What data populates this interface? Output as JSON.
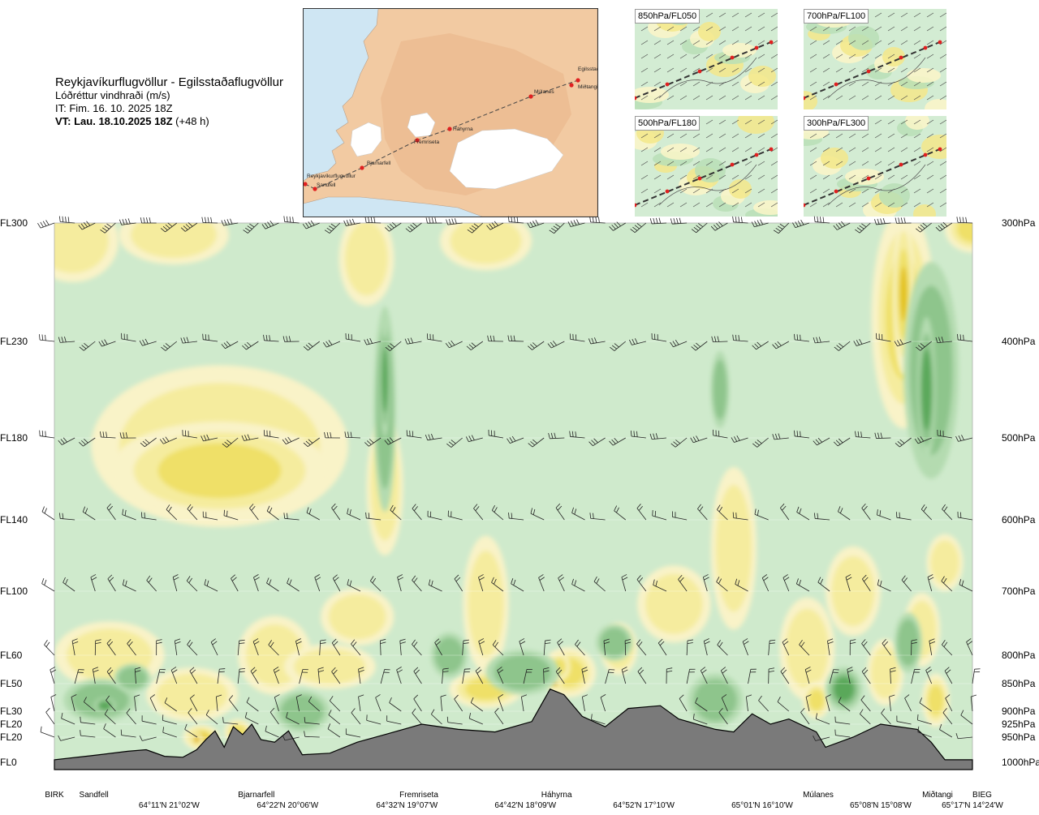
{
  "header": {
    "route": "Reykjavíkurflugvöllur - Egilsstaðaflugvöllur",
    "variable": "Lóðréttur vindhraði (m/s)",
    "issue": "IT: Fim. 16. 10. 2025 18Z",
    "valid_bold": "VT: Lau. 18.10.2025 18Z",
    "valid_lead": "(+48 h)"
  },
  "map": {
    "stations": [
      "Reykjavíkurflugvöllur",
      "Sandfell",
      "Bjarnarfell",
      "Fremriseta",
      "Háhyrna",
      "Múlanes",
      "Miðtangi",
      "Egilsstaðir"
    ],
    "colors": {
      "sea": "#cfe6f3",
      "land": "#f0c9a4",
      "ice": "#ffffff",
      "route": "#444444",
      "station": "#e02020"
    }
  },
  "mini_maps": [
    {
      "label": "850hPa/FL050"
    },
    {
      "label": "700hPa/FL100"
    },
    {
      "label": "500hPa/FL180"
    },
    {
      "label": "300hPa/FL300"
    }
  ],
  "chart_data": {
    "type": "heatmap",
    "title": "Reykjavíkurflugvöllur - Egilsstaðaflugvöllur",
    "quantity": "Lóðréttur vindhraði (m/s)",
    "levels": [
      {
        "fl": "FL300",
        "hpa": "300hPa",
        "p": 300
      },
      {
        "fl": "FL230",
        "hpa": "400hPa",
        "p": 400
      },
      {
        "fl": "FL180",
        "hpa": "500hPa",
        "p": 500
      },
      {
        "fl": "FL140",
        "hpa": "600hPa",
        "p": 600
      },
      {
        "fl": "FL100",
        "hpa": "700hPa",
        "p": 700
      },
      {
        "fl": "FL60",
        "hpa": "800hPa",
        "p": 800
      },
      {
        "fl": "FL50",
        "hpa": "850hPa",
        "p": 850
      },
      {
        "fl": "FL30",
        "hpa": "900hPa",
        "p": 900
      },
      {
        "fl": "FL20",
        "hpa": "925hPa",
        "p": 925
      },
      {
        "fl": "FL20",
        "hpa": "950hPa",
        "p": 950
      },
      {
        "fl": "FL0",
        "hpa": "1000hPa",
        "p": 1000
      }
    ],
    "places": [
      {
        "name": "BIRK",
        "d": 0
      },
      {
        "name": "Sandfell",
        "d": 0.043
      },
      {
        "name": "Bjarnarfell",
        "d": 0.22
      },
      {
        "name": "Fremriseta",
        "d": 0.397
      },
      {
        "name": "Háhyrna",
        "d": 0.547
      },
      {
        "name": "Múlanes",
        "d": 0.832
      },
      {
        "name": "Miðtangi",
        "d": 0.962
      },
      {
        "name": "BIEG",
        "d": 1
      }
    ],
    "coordinates": [
      {
        "text": "64°11'N 21°02'W",
        "d": 0.125
      },
      {
        "text": "64°22'N 20°06'W",
        "d": 0.254
      },
      {
        "text": "64°32'N 19°07'W",
        "d": 0.384
      },
      {
        "text": "64°42'N 18°09'W",
        "d": 0.513
      },
      {
        "text": "64°52'N 17°10'W",
        "d": 0.642
      },
      {
        "text": "65°01'N 16°10'W",
        "d": 0.771
      },
      {
        "text": "65°08'N 15°08'W",
        "d": 0.9
      },
      {
        "text": "65°17'N 14°24'W",
        "d": 1.0
      }
    ],
    "colors": {
      "background": "#cfeacc",
      "weak_down": "#b4dbb0",
      "down": "#8ec58c",
      "strong_down": "#5aa85a",
      "weak_up_light": "#f9f3c8",
      "weak_up": "#f5ec9e",
      "up": "#efe068",
      "strong_up": "#e3c21a",
      "very_strong_up": "#df8a1a",
      "extreme_up": "#c84a16",
      "terrain": "#7a7a7a",
      "wind_barb": "#222222"
    },
    "terrain_profile": [
      {
        "d": 0.0,
        "p": 995
      },
      {
        "d": 0.04,
        "p": 987
      },
      {
        "d": 0.08,
        "p": 978
      },
      {
        "d": 0.1,
        "p": 975
      },
      {
        "d": 0.12,
        "p": 988
      },
      {
        "d": 0.14,
        "p": 990
      },
      {
        "d": 0.155,
        "p": 975
      },
      {
        "d": 0.165,
        "p": 955
      },
      {
        "d": 0.175,
        "p": 938
      },
      {
        "d": 0.185,
        "p": 970
      },
      {
        "d": 0.195,
        "p": 930
      },
      {
        "d": 0.205,
        "p": 945
      },
      {
        "d": 0.215,
        "p": 925
      },
      {
        "d": 0.225,
        "p": 955
      },
      {
        "d": 0.24,
        "p": 960
      },
      {
        "d": 0.255,
        "p": 938
      },
      {
        "d": 0.27,
        "p": 985
      },
      {
        "d": 0.3,
        "p": 982
      },
      {
        "d": 0.33,
        "p": 960
      },
      {
        "d": 0.36,
        "p": 945
      },
      {
        "d": 0.4,
        "p": 925
      },
      {
        "d": 0.44,
        "p": 935
      },
      {
        "d": 0.48,
        "p": 940
      },
      {
        "d": 0.52,
        "p": 920
      },
      {
        "d": 0.54,
        "p": 860
      },
      {
        "d": 0.555,
        "p": 870
      },
      {
        "d": 0.575,
        "p": 910
      },
      {
        "d": 0.6,
        "p": 930
      },
      {
        "d": 0.625,
        "p": 895
      },
      {
        "d": 0.66,
        "p": 890
      },
      {
        "d": 0.68,
        "p": 915
      },
      {
        "d": 0.72,
        "p": 935
      },
      {
        "d": 0.74,
        "p": 940
      },
      {
        "d": 0.76,
        "p": 905
      },
      {
        "d": 0.78,
        "p": 925
      },
      {
        "d": 0.8,
        "p": 915
      },
      {
        "d": 0.83,
        "p": 940
      },
      {
        "d": 0.84,
        "p": 970
      },
      {
        "d": 0.87,
        "p": 950
      },
      {
        "d": 0.9,
        "p": 925
      },
      {
        "d": 0.94,
        "p": 935
      },
      {
        "d": 0.955,
        "p": 960
      },
      {
        "d": 0.97,
        "p": 995
      },
      {
        "d": 1.0,
        "p": 995
      }
    ],
    "up_blobs": [
      {
        "d": 0.02,
        "p": 315,
        "rd": 0.05,
        "rp": 35,
        "level": 1
      },
      {
        "d": 0.13,
        "p": 310,
        "rd": 0.06,
        "rp": 25,
        "level": 1
      },
      {
        "d": 0.18,
        "p": 510,
        "rd": 0.14,
        "rp": 100,
        "level": 1
      },
      {
        "d": 0.18,
        "p": 540,
        "rd": 0.12,
        "rp": 60,
        "level": 2
      },
      {
        "d": 0.34,
        "p": 330,
        "rd": 0.03,
        "rp": 40,
        "level": 1
      },
      {
        "d": 0.47,
        "p": 315,
        "rd": 0.05,
        "rp": 25,
        "level": 1
      },
      {
        "d": 0.925,
        "p": 380,
        "rd": 0.035,
        "rp": 110,
        "level": 2
      },
      {
        "d": 0.925,
        "p": 360,
        "rd": 0.012,
        "rp": 75,
        "level": 3
      },
      {
        "d": 1.0,
        "p": 305,
        "rd": 0.03,
        "rp": 20,
        "level": 2
      },
      {
        "d": 0.47,
        "p": 720,
        "rd": 0.025,
        "rp": 110,
        "level": 1
      },
      {
        "d": 0.36,
        "p": 560,
        "rd": 0.02,
        "rp": 90,
        "level": 1
      },
      {
        "d": 0.06,
        "p": 800,
        "rd": 0.06,
        "rp": 60,
        "level": 1
      },
      {
        "d": 0.15,
        "p": 870,
        "rd": 0.05,
        "rp": 50,
        "level": 1
      },
      {
        "d": 0.24,
        "p": 800,
        "rd": 0.04,
        "rp": 70,
        "level": 1
      },
      {
        "d": 0.3,
        "p": 820,
        "rd": 0.05,
        "rp": 40,
        "level": 1
      },
      {
        "d": 0.33,
        "p": 740,
        "rd": 0.04,
        "rp": 45,
        "level": 1
      },
      {
        "d": 0.47,
        "p": 860,
        "rd": 0.04,
        "rp": 35,
        "level": 2
      },
      {
        "d": 0.56,
        "p": 830,
        "rd": 0.03,
        "rp": 45,
        "level": 2
      },
      {
        "d": 0.615,
        "p": 790,
        "rd": 0.02,
        "rp": 45,
        "level": 1
      },
      {
        "d": 0.675,
        "p": 720,
        "rd": 0.04,
        "rp": 60,
        "level": 1
      },
      {
        "d": 0.74,
        "p": 640,
        "rd": 0.025,
        "rp": 120,
        "level": 1
      },
      {
        "d": 0.82,
        "p": 790,
        "rd": 0.03,
        "rp": 90,
        "level": 1
      },
      {
        "d": 0.83,
        "p": 880,
        "rd": 0.015,
        "rp": 35,
        "level": 2
      },
      {
        "d": 0.87,
        "p": 700,
        "rd": 0.03,
        "rp": 70,
        "level": 1
      },
      {
        "d": 0.905,
        "p": 830,
        "rd": 0.02,
        "rp": 60,
        "level": 1
      },
      {
        "d": 0.945,
        "p": 760,
        "rd": 0.02,
        "rp": 60,
        "level": 1
      },
      {
        "d": 0.96,
        "p": 880,
        "rd": 0.015,
        "rp": 50,
        "level": 2
      },
      {
        "d": 0.97,
        "p": 660,
        "rd": 0.02,
        "rp": 40,
        "level": 1
      },
      {
        "d": 0.16,
        "p": 950,
        "rd": 0.02,
        "rp": 25,
        "level": 3
      },
      {
        "d": 0.155,
        "p": 955,
        "rd": 0.008,
        "rp": 15,
        "level": 4
      },
      {
        "d": 0.2,
        "p": 940,
        "rd": 0.015,
        "rp": 25,
        "level": 2
      },
      {
        "d": 0.545,
        "p": 850,
        "rd": 0.008,
        "rp": 10,
        "level": 4
      },
      {
        "d": 0.55,
        "p": 820,
        "rd": 0.012,
        "rp": 25,
        "level": 2
      }
    ],
    "down_blobs": [
      {
        "d": 0.36,
        "p": 470,
        "rd": 0.012,
        "rp": 120,
        "level": 1
      },
      {
        "d": 0.36,
        "p": 440,
        "rd": 0.006,
        "rp": 60,
        "level": 2
      },
      {
        "d": 0.955,
        "p": 430,
        "rd": 0.03,
        "rp": 120,
        "level": 1
      },
      {
        "d": 0.95,
        "p": 450,
        "rd": 0.01,
        "rp": 80,
        "level": 2
      },
      {
        "d": 0.51,
        "p": 830,
        "rd": 0.04,
        "rp": 40,
        "level": 1
      },
      {
        "d": 0.05,
        "p": 880,
        "rd": 0.04,
        "rp": 40,
        "level": 1
      },
      {
        "d": 0.055,
        "p": 890,
        "rd": 0.012,
        "rp": 15,
        "level": 3
      },
      {
        "d": 0.085,
        "p": 840,
        "rd": 0.02,
        "rp": 25,
        "level": 1
      },
      {
        "d": 0.27,
        "p": 900,
        "rd": 0.03,
        "rp": 40,
        "level": 1
      },
      {
        "d": 0.43,
        "p": 800,
        "rd": 0.02,
        "rp": 40,
        "level": 1
      },
      {
        "d": 0.61,
        "p": 780,
        "rd": 0.02,
        "rp": 30,
        "level": 1
      },
      {
        "d": 0.72,
        "p": 880,
        "rd": 0.03,
        "rp": 50,
        "level": 1
      },
      {
        "d": 0.86,
        "p": 860,
        "rd": 0.02,
        "rp": 40,
        "level": 2
      },
      {
        "d": 0.93,
        "p": 780,
        "rd": 0.015,
        "rp": 50,
        "level": 1
      },
      {
        "d": 0.725,
        "p": 450,
        "rd": 0.01,
        "rp": 40,
        "level": 1
      }
    ],
    "wind_rows": [
      {
        "p": 300,
        "dir": 250,
        "kt": 35
      },
      {
        "p": 400,
        "dir": 255,
        "kt": 30
      },
      {
        "p": 500,
        "dir": 255,
        "kt": 25
      },
      {
        "p": 600,
        "dir": 300,
        "kt": 15
      },
      {
        "p": 700,
        "dir": 320,
        "kt": 15
      },
      {
        "p": 800,
        "dir": 340,
        "kt": 15
      },
      {
        "p": 850,
        "dir": 350,
        "kt": 15
      },
      {
        "p": 900,
        "dir": 330,
        "kt": 10
      },
      {
        "p": 925,
        "dir": 300,
        "kt": 10
      },
      {
        "p": 950,
        "dir": 280,
        "kt": 10
      }
    ]
  }
}
